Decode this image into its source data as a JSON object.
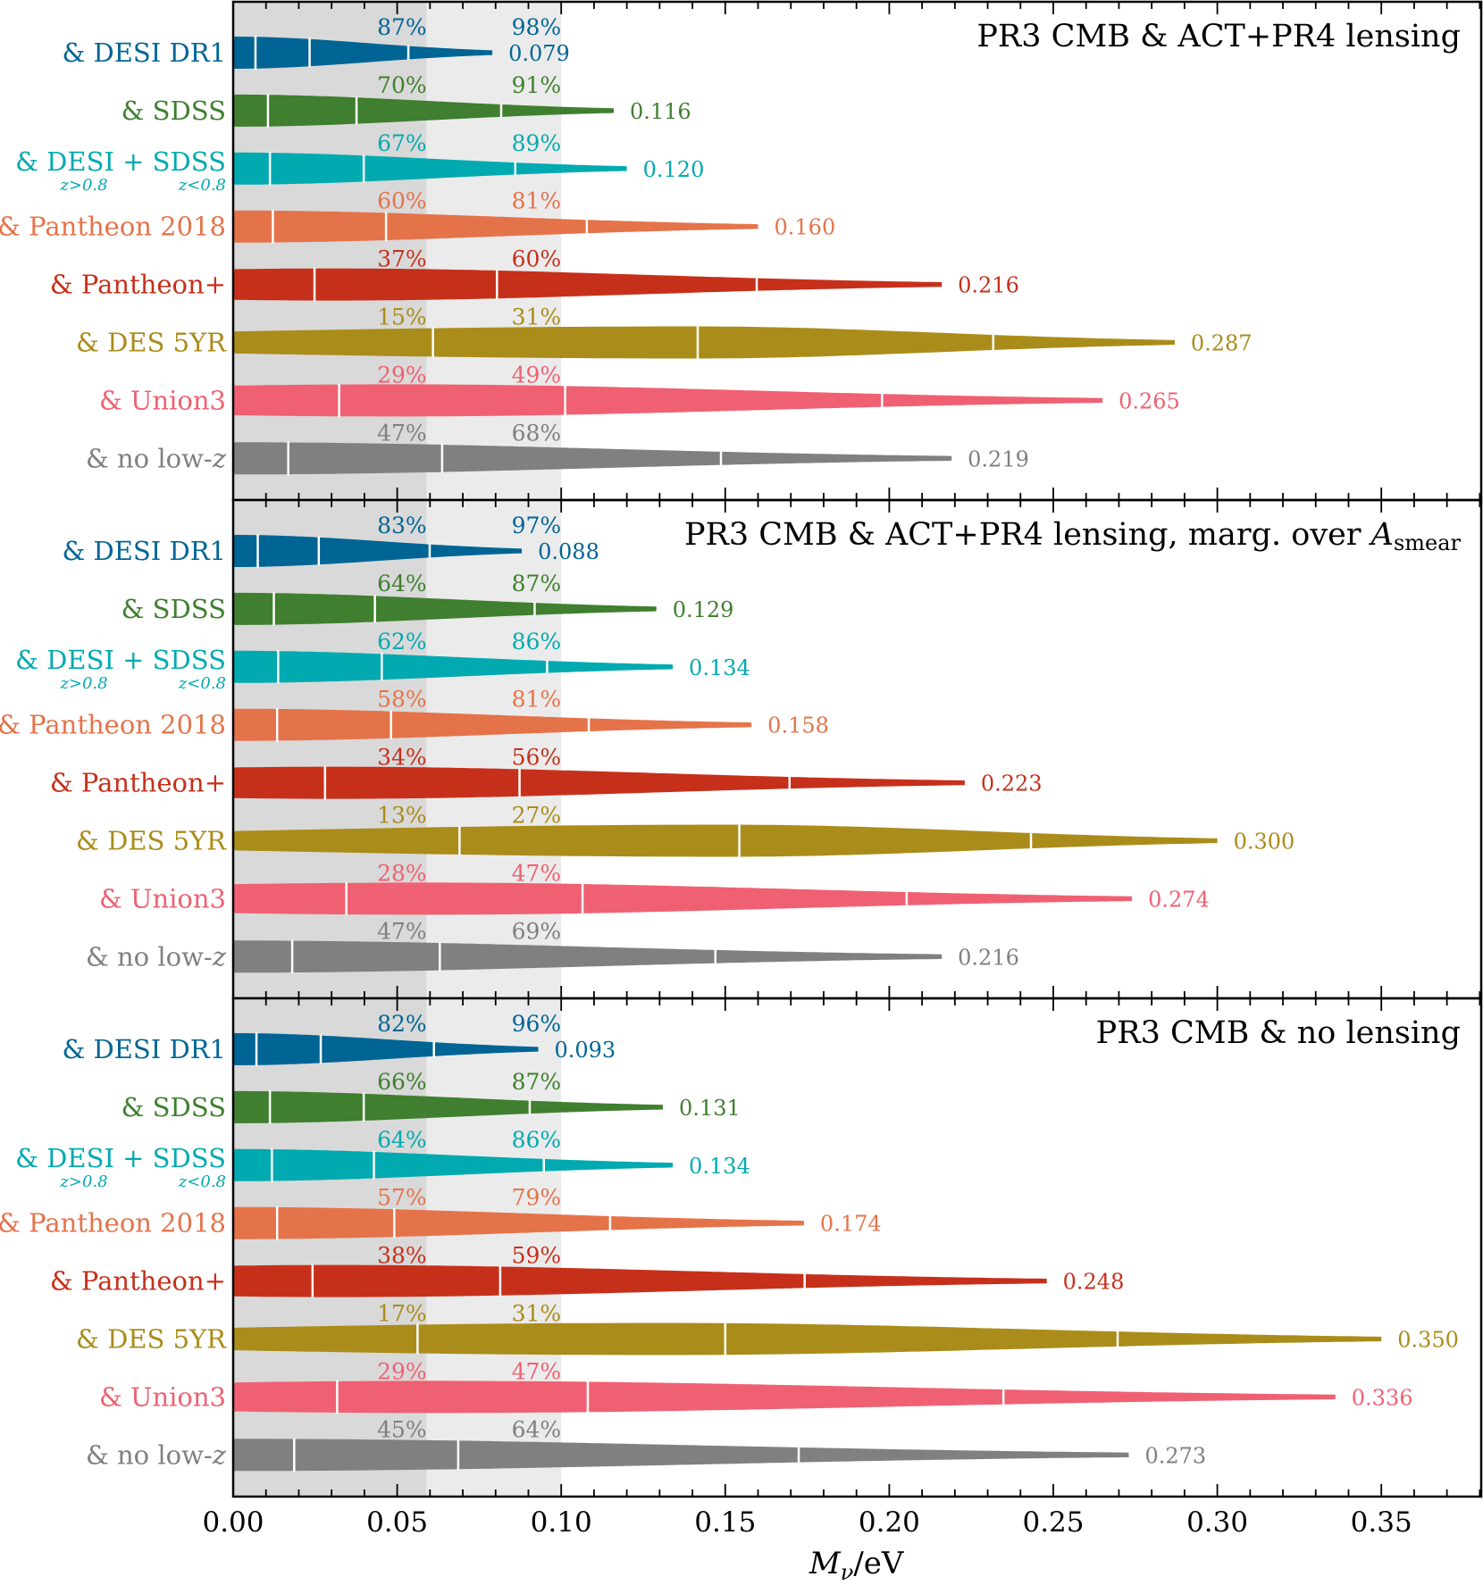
{
  "chart_data": {
    "type": "violin",
    "xlabel": "M_ν/eV",
    "xlabel_main": "M",
    "xlabel_sub": "ν",
    "xlabel_unit": "/eV",
    "xlim": [
      0,
      0.38
    ],
    "x_ticks": [
      "0.00",
      "0.05",
      "0.10",
      "0.15",
      "0.20",
      "0.25",
      "0.30",
      "0.35"
    ],
    "x_tick_values": [
      0,
      0.05,
      0.1,
      0.15,
      0.2,
      0.25,
      0.3,
      0.35
    ],
    "minor_tick_step": 0.01,
    "shaded_bands": [
      {
        "from": 0.0,
        "to": 0.059,
        "color": "#d9d9d9"
      },
      {
        "from": 0.059,
        "to": 0.1,
        "color": "#ebebeb"
      }
    ],
    "percent_label_anchors": [
      0.059,
      0.1
    ],
    "panels": [
      {
        "title": "PR3 CMB & ACT+PR4 lensing",
        "rows": [
          {
            "label": "& DESI DR1",
            "color": "#006594",
            "dividers": [
              0.0068,
              0.0233,
              0.0534
            ],
            "upper95": 0.079,
            "upper_label": "0.079",
            "pct_below_0059": "87%",
            "pct_below_010": "98%",
            "mode": 0,
            "density_at_zero": 1
          },
          {
            "label": "& SDSS",
            "color": "#3f7f2f",
            "dividers": [
              0.0106,
              0.0376,
              0.0817
            ],
            "upper95": 0.116,
            "upper_label": "0.116",
            "pct_below_0059": "70%",
            "pct_below_010": "91%",
            "mode": 0,
            "density_at_zero": 1
          },
          {
            "label": "& DESI + SDSS",
            "sub_left": "z>0.8",
            "sub_right": "z<0.8",
            "color": "#00aab0",
            "dividers": [
              0.0112,
              0.0398,
              0.086
            ],
            "upper95": 0.12,
            "upper_label": "0.120",
            "pct_below_0059": "67%",
            "pct_below_010": "89%",
            "mode": 0,
            "density_at_zero": 1
          },
          {
            "label": "& Pantheon 2018",
            "color": "#e5734a",
            "dividers": [
              0.0121,
              0.0466,
              0.1078
            ],
            "upper95": 0.16,
            "upper_label": "0.160",
            "pct_below_0059": "60%",
            "pct_below_010": "81%",
            "mode": 0,
            "density_at_zero": 1
          },
          {
            "label": "& Pantheon+",
            "color": "#c6301b",
            "dividers": [
              0.0248,
              0.0804,
              0.1596
            ],
            "upper95": 0.216,
            "upper_label": "0.216",
            "pct_below_0059": "37%",
            "pct_below_010": "60%",
            "mode": 0.03,
            "density_at_zero": 0.95
          },
          {
            "label": "& DES 5YR",
            "color": "#aa8c1a",
            "dividers": [
              0.0609,
              0.1416,
              0.2317
            ],
            "upper95": 0.287,
            "upper_label": "0.287",
            "pct_below_0059": "15%",
            "pct_below_010": "31%",
            "mode": 0.14,
            "density_at_zero": 0.68
          },
          {
            "label": "& Union3",
            "color": "#ef6172",
            "dividers": [
              0.0323,
              0.1012,
              0.1978
            ],
            "upper95": 0.265,
            "upper_label": "0.265",
            "pct_below_0059": "29%",
            "pct_below_010": "49%",
            "mode": 0.05,
            "density_at_zero": 0.92
          },
          {
            "label": "& no low-",
            "label_italic": "z",
            "color": "#808080",
            "dividers": [
              0.0168,
              0.0637,
              0.1487
            ],
            "upper95": 0.219,
            "upper_label": "0.219",
            "pct_below_0059": "47%",
            "pct_below_010": "68%",
            "mode": 0,
            "density_at_zero": 1
          }
        ]
      },
      {
        "title": "PR3 CMB & ACT+PR4 lensing, marg. over ",
        "title_symbol": "A",
        "title_sub": "smear",
        "rows": [
          {
            "label": "& DESI DR1",
            "color": "#006594",
            "dividers": [
              0.0075,
              0.0261,
              0.0599
            ],
            "upper95": 0.088,
            "upper_label": "0.088",
            "pct_below_0059": "83%",
            "pct_below_010": "97%",
            "mode": 0,
            "density_at_zero": 1
          },
          {
            "label": "& SDSS",
            "color": "#3f7f2f",
            "dividers": [
              0.0124,
              0.0432,
              0.0919
            ],
            "upper95": 0.129,
            "upper_label": "0.129",
            "pct_below_0059": "64%",
            "pct_below_010": "87%",
            "mode": 0,
            "density_at_zero": 1
          },
          {
            "label": "& DESI + SDSS",
            "sub_left": "z>0.8",
            "sub_right": "z<0.8",
            "color": "#00aab0",
            "dividers": [
              0.0137,
              0.0453,
              0.0957
            ],
            "upper95": 0.134,
            "upper_label": "0.134",
            "pct_below_0059": "62%",
            "pct_below_010": "86%",
            "mode": 0,
            "density_at_zero": 1
          },
          {
            "label": "& Pantheon 2018",
            "color": "#e5734a",
            "dividers": [
              0.0134,
              0.0481,
              0.1084
            ],
            "upper95": 0.158,
            "upper_label": "0.158",
            "pct_below_0059": "58%",
            "pct_below_010": "81%",
            "mode": 0,
            "density_at_zero": 1
          },
          {
            "label": "& Pantheon+",
            "color": "#c6301b",
            "dividers": [
              0.028,
              0.0873,
              0.1696
            ],
            "upper95": 0.223,
            "upper_label": "0.223",
            "pct_below_0059": "34%",
            "pct_below_010": "56%",
            "mode": 0.03,
            "density_at_zero": 0.95
          },
          {
            "label": "& DES 5YR",
            "color": "#aa8c1a",
            "dividers": [
              0.069,
              0.1543,
              0.2432
            ],
            "upper95": 0.3,
            "upper_label": "0.300",
            "pct_below_0059": "13%",
            "pct_below_010": "27%",
            "mode": 0.15,
            "density_at_zero": 0.6
          },
          {
            "label": "& Union3",
            "color": "#ef6172",
            "dividers": [
              0.0345,
              0.1065,
              0.2053
            ],
            "upper95": 0.274,
            "upper_label": "0.274",
            "pct_below_0059": "28%",
            "pct_below_010": "47%",
            "mode": 0.06,
            "density_at_zero": 0.9
          },
          {
            "label": "& no low-",
            "label_italic": "z",
            "color": "#808080",
            "dividers": [
              0.018,
              0.063,
              0.147
            ],
            "upper95": 0.216,
            "upper_label": "0.216",
            "pct_below_0059": "47%",
            "pct_below_010": "69%",
            "mode": 0,
            "density_at_zero": 1
          }
        ]
      },
      {
        "title": "PR3 CMB & no lensing",
        "rows": [
          {
            "label": "& DESI DR1",
            "color": "#006594",
            "dividers": [
              0.0071,
              0.0267,
              0.0612
            ],
            "upper95": 0.093,
            "upper_label": "0.093",
            "pct_below_0059": "82%",
            "pct_below_010": "96%",
            "mode": 0,
            "density_at_zero": 1
          },
          {
            "label": "& SDSS",
            "color": "#3f7f2f",
            "dividers": [
              0.0112,
              0.0398,
              0.0904
            ],
            "upper95": 0.131,
            "upper_label": "0.131",
            "pct_below_0059": "66%",
            "pct_below_010": "87%",
            "mode": 0,
            "density_at_zero": 1
          },
          {
            "label": "& DESI + SDSS",
            "sub_left": "z>0.8",
            "sub_right": "z<0.8",
            "color": "#00aab0",
            "dividers": [
              0.0118,
              0.0429,
              0.0947
            ],
            "upper95": 0.134,
            "upper_label": "0.134",
            "pct_below_0059": "64%",
            "pct_below_010": "86%",
            "mode": 0,
            "density_at_zero": 1
          },
          {
            "label": "& Pantheon 2018",
            "color": "#e5734a",
            "dividers": [
              0.0134,
              0.0491,
              0.1149
            ],
            "upper95": 0.174,
            "upper_label": "0.174",
            "pct_below_0059": "57%",
            "pct_below_010": "79%",
            "mode": 0,
            "density_at_zero": 1
          },
          {
            "label": "& Pantheon+",
            "color": "#c6301b",
            "dividers": [
              0.0242,
              0.0814,
              0.1742
            ],
            "upper95": 0.248,
            "upper_label": "0.248",
            "pct_below_0059": "38%",
            "pct_below_010": "59%",
            "mode": 0.03,
            "density_at_zero": 0.95
          },
          {
            "label": "& DES 5YR",
            "color": "#aa8c1a",
            "dividers": [
              0.0562,
              0.15,
              0.2696
            ],
            "upper95": 0.35,
            "upper_label": "0.350",
            "pct_below_0059": "17%",
            "pct_below_010": "31%",
            "mode": 0.13,
            "density_at_zero": 0.7
          },
          {
            "label": "& Union3",
            "color": "#ef6172",
            "dividers": [
              0.0317,
              0.1081,
              0.2348
            ],
            "upper95": 0.336,
            "upper_label": "0.336",
            "pct_below_0059": "29%",
            "pct_below_010": "47%",
            "mode": 0.06,
            "density_at_zero": 0.9
          },
          {
            "label": "& no low-",
            "label_italic": "z",
            "color": "#808080",
            "dividers": [
              0.0186,
              0.0686,
              0.1724
            ],
            "upper95": 0.273,
            "upper_label": "0.273",
            "pct_below_0059": "45%",
            "pct_below_010": "64%",
            "mode": 0,
            "density_at_zero": 1
          }
        ]
      }
    ]
  }
}
